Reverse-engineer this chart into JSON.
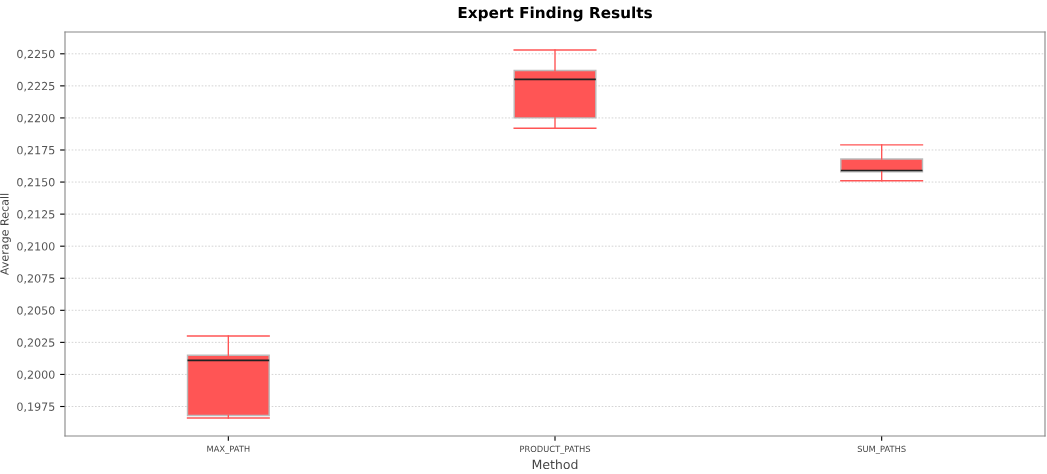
{
  "chart_data": {
    "type": "box",
    "title": "Expert Finding Results",
    "xlabel": "Method",
    "ylabel": "Average Recall",
    "categories": [
      "MAX_PATH",
      "PRODUCT_PATHS",
      "SUM_PATHS"
    ],
    "boxes": [
      {
        "low": 0.1966,
        "q1": 0.1968,
        "median": 0.2011,
        "q3": 0.2015,
        "high": 0.203
      },
      {
        "low": 0.2192,
        "q1": 0.22,
        "median": 0.223,
        "q3": 0.2237,
        "high": 0.2253
      },
      {
        "low": 0.2151,
        "q1": 0.2158,
        "median": 0.2159,
        "q3": 0.2168,
        "high": 0.2179
      }
    ],
    "color": "#ff5555",
    "ylim": [
      0.1952,
      0.2267
    ],
    "yticks": [
      {
        "value": 0.1975,
        "label": "0,1975"
      },
      {
        "value": 0.2,
        "label": "0,2000"
      },
      {
        "value": 0.2025,
        "label": "0,2025"
      },
      {
        "value": 0.205,
        "label": "0,2050"
      },
      {
        "value": 0.2075,
        "label": "0,2075"
      },
      {
        "value": 0.21,
        "label": "0,2100"
      },
      {
        "value": 0.2125,
        "label": "0,2125"
      },
      {
        "value": 0.215,
        "label": "0,2150"
      },
      {
        "value": 0.2175,
        "label": "0,2175"
      },
      {
        "value": 0.22,
        "label": "0,2200"
      },
      {
        "value": 0.2225,
        "label": "0,2225"
      },
      {
        "value": 0.225,
        "label": "0,2250"
      }
    ],
    "grid": "y"
  }
}
